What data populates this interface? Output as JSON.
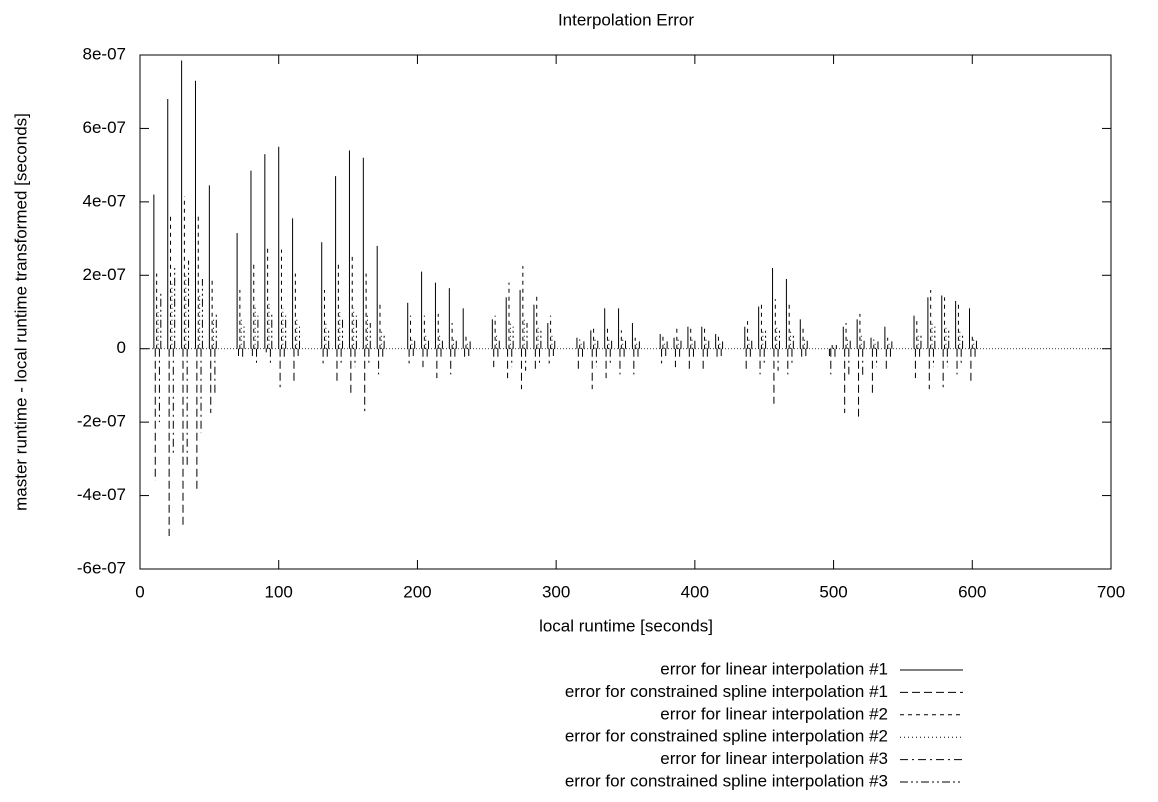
{
  "chart_data": {
    "type": "impulse",
    "title": "Interpolation Error",
    "x_label": "local runtime [seconds]",
    "y_label": "master runtime - local runtime transformed [seconds]",
    "xlim": [
      0,
      700
    ],
    "xticks": [
      0,
      100,
      200,
      300,
      400,
      500,
      600,
      700
    ],
    "ylim": [
      -6e-07,
      8e-07
    ],
    "yticks": [
      {
        "value": -6e-07,
        "label": "-6e-07"
      },
      {
        "value": -4e-07,
        "label": "-4e-07"
      },
      {
        "value": -2e-07,
        "label": "-2e-07"
      },
      0,
      {
        "value": 2e-07,
        "label": "2e-07"
      },
      {
        "value": 4e-07,
        "label": "4e-07"
      },
      {
        "value": 6e-07,
        "label": "6e-07"
      },
      {
        "value": 8e-07,
        "label": "8e-07"
      }
    ],
    "legend": "bottom-right",
    "series": [
      {
        "name": "error for linear interpolation #1",
        "color": "#000000",
        "dash": [],
        "x": [
          10,
          20,
          30,
          40,
          50,
          70,
          80,
          90,
          100,
          110,
          131,
          141,
          151,
          161,
          171,
          193,
          203,
          213,
          223,
          233,
          254,
          264,
          274,
          284,
          294,
          315,
          325,
          335,
          345,
          355,
          375,
          385,
          395,
          405,
          415,
          436,
          446,
          456,
          466,
          476,
          497,
          507,
          517,
          527,
          537,
          558,
          568,
          578,
          588,
          598
        ],
        "values": [
          4.2e-07,
          6.8e-07,
          7.85e-07,
          7.3e-07,
          4.45e-07,
          3.15e-07,
          4.85e-07,
          5.3e-07,
          5.5e-07,
          3.55e-07,
          2.9e-07,
          4.7e-07,
          5.4e-07,
          5.2e-07,
          2.8e-07,
          1.25e-07,
          2.1e-07,
          1.8e-07,
          1.65e-07,
          1.1e-07,
          8e-08,
          1.4e-07,
          1.6e-07,
          1.2e-07,
          7e-08,
          3e-08,
          5e-08,
          1.1e-07,
          1.1e-07,
          7e-08,
          4e-08,
          3e-08,
          6e-08,
          6e-08,
          4e-08,
          6e-08,
          1.15e-07,
          2.2e-07,
          1.9e-07,
          8e-08,
          -2e-08,
          6e-08,
          8e-08,
          3e-08,
          6e-08,
          9e-08,
          1.4e-07,
          1.45e-07,
          1.3e-07,
          1.1e-07
        ]
      },
      {
        "name": "error for constrained spline interpolation #1",
        "color": "#000000",
        "dash": [
          8,
          4
        ],
        "x": [
          11,
          21,
          31,
          41,
          51,
          71,
          81,
          91,
          101,
          111,
          132,
          142,
          152,
          162,
          172,
          194,
          204,
          214,
          224,
          234,
          255,
          265,
          275,
          285,
          295,
          316,
          326,
          336,
          346,
          356,
          376,
          386,
          396,
          406,
          416,
          437,
          447,
          457,
          467,
          477,
          498,
          508,
          518,
          528,
          538,
          559,
          569,
          579,
          589,
          599
        ],
        "values": [
          -3.6e-07,
          -5.1e-07,
          -4.9e-07,
          -3.85e-07,
          -1.75e-07,
          -2e-08,
          -2e-08,
          -1e-08,
          -1.05e-07,
          -9e-08,
          -4e-08,
          -9e-08,
          -1.2e-07,
          -1.7e-07,
          -7e-08,
          -4e-08,
          -5e-08,
          -8e-08,
          -7e-08,
          -3e-08,
          -5e-08,
          -8e-08,
          -1.1e-07,
          -6e-08,
          -4e-08,
          -6e-08,
          -1.1e-07,
          -8e-08,
          -7e-08,
          -7e-08,
          -4e-08,
          -5e-08,
          -6.5e-08,
          -6e-08,
          -3e-08,
          -6.5e-08,
          -7e-08,
          -1.5e-07,
          -7e-08,
          -3e-08,
          -7e-08,
          -1.75e-07,
          -1.85e-07,
          -1.2e-07,
          -6e-08,
          -8e-08,
          -1.1e-07,
          -1.05e-07,
          -7e-08,
          -9.5e-08
        ]
      },
      {
        "name": "error for linear interpolation #2",
        "color": "#000000",
        "dash": [
          4,
          4
        ],
        "x": [
          12,
          22,
          32,
          42,
          52,
          72,
          82,
          92,
          102,
          112,
          133,
          143,
          153,
          163,
          173,
          195,
          205,
          215,
          225,
          235,
          256,
          266,
          276,
          286,
          296,
          317,
          327,
          337,
          347,
          357,
          377,
          387,
          397,
          407,
          417,
          438,
          448,
          458,
          468,
          478,
          499,
          509,
          519,
          529,
          539,
          560,
          570,
          580,
          590,
          600
        ],
        "values": [
          2.05e-07,
          3.6e-07,
          4.15e-07,
          3.7e-07,
          1.95e-07,
          1.6e-07,
          2.35e-07,
          2.75e-07,
          2.7e-07,
          2.05e-07,
          1.6e-07,
          2.35e-07,
          2.5e-07,
          2.05e-07,
          1.2e-07,
          9e-08,
          9e-08,
          9.5e-08,
          7e-08,
          4e-08,
          9e-08,
          1.8e-07,
          2.25e-07,
          1.5e-07,
          9e-08,
          2.5e-08,
          5.5e-08,
          6e-08,
          5e-08,
          3e-08,
          3.5e-08,
          5.5e-08,
          6e-08,
          6.5e-08,
          3.5e-08,
          7.5e-08,
          1.2e-07,
          1.35e-07,
          1.25e-07,
          6e-08,
          1e-08,
          7e-08,
          9.5e-08,
          2.5e-08,
          3e-08,
          7.5e-08,
          1.6e-07,
          1.4e-07,
          1.2e-07,
          4e-08
        ]
      },
      {
        "name": "error for constrained spline interpolation #2",
        "color": "#000000",
        "dash": [
          1,
          3
        ],
        "x": [
          13,
          23,
          33,
          43,
          53,
          73,
          83,
          93,
          103,
          113,
          134,
          144,
          154,
          164,
          174,
          196,
          206,
          216,
          226,
          236,
          257,
          267,
          277,
          287,
          297,
          318,
          328,
          338,
          348,
          358,
          378,
          388,
          398,
          408,
          418,
          439,
          449,
          459,
          469,
          479,
          500,
          510,
          520,
          530,
          540,
          561,
          571,
          581,
          591,
          601
        ],
        "values": [
          1e-07,
          1.8e-07,
          2e-07,
          1.5e-07,
          8e-08,
          8e-08,
          1.2e-07,
          1.3e-07,
          1.1e-07,
          8e-08,
          7e-08,
          1e-07,
          1.1e-07,
          9e-08,
          5e-08,
          3e-08,
          4e-08,
          4e-08,
          3e-08,
          2e-08,
          4e-08,
          7e-08,
          8e-08,
          6e-08,
          4e-08,
          2e-08,
          3e-08,
          3e-08,
          3e-08,
          2e-08,
          2e-08,
          3e-08,
          3e-08,
          3e-08,
          2e-08,
          3e-08,
          5e-08,
          6e-08,
          5e-08,
          3e-08,
          1e-08,
          3e-08,
          4e-08,
          2e-08,
          2e-08,
          4e-08,
          7e-08,
          6e-08,
          5e-08,
          3e-08
        ]
      },
      {
        "name": "error for linear interpolation #3",
        "color": "#000000",
        "dash": [
          8,
          4,
          2,
          4
        ],
        "x": [
          14,
          24,
          34,
          44,
          54,
          74,
          84,
          94,
          104,
          114,
          135,
          145,
          155,
          165,
          175,
          197,
          207,
          217,
          227,
          237,
          258,
          268,
          278,
          288,
          298,
          319,
          329,
          339,
          349,
          359,
          379,
          389,
          399,
          409,
          419,
          440,
          450,
          460,
          470,
          480,
          501,
          511,
          521,
          531,
          541,
          562,
          572,
          582,
          592,
          602
        ],
        "values": [
          -2e-07,
          -2.9e-07,
          -3.2e-07,
          -2.3e-07,
          -1.2e-07,
          -3e-08,
          -4e-08,
          -4e-08,
          -3e-08,
          -2e-08,
          -3e-08,
          -4e-08,
          -5e-08,
          -4e-08,
          -3e-08,
          -2e-08,
          -3e-08,
          -3e-08,
          -3e-08,
          -2e-08,
          -3e-08,
          -5e-08,
          -6e-08,
          -4e-08,
          -2e-08,
          -3e-08,
          -5e-08,
          -4e-08,
          -3e-08,
          -3e-08,
          -2e-08,
          -3e-08,
          -3e-08,
          -3e-08,
          -2e-08,
          -3e-08,
          -4e-08,
          -6e-08,
          -4e-08,
          -2e-08,
          -3e-08,
          -7e-08,
          -8e-08,
          -5e-08,
          -3e-08,
          -3e-08,
          -5e-08,
          -5e-08,
          -4e-08,
          -3e-08
        ]
      },
      {
        "name": "error for constrained spline interpolation #3",
        "color": "#000000",
        "dash": [
          8,
          3,
          2,
          3,
          2,
          3
        ],
        "x": [
          15,
          25,
          35,
          45,
          55,
          75,
          85,
          95,
          105,
          115,
          136,
          146,
          156,
          166,
          176,
          198,
          208,
          218,
          228,
          238,
          259,
          269,
          279,
          289,
          299,
          320,
          330,
          340,
          350,
          360,
          380,
          390,
          400,
          410,
          420,
          441,
          451,
          461,
          471,
          481,
          502,
          512,
          522,
          532,
          542,
          563,
          573,
          583,
          593,
          603
        ],
        "values": [
          1.5e-07,
          2.2e-07,
          2.4e-07,
          1.9e-07,
          1e-07,
          6e-08,
          9e-08,
          1e-07,
          9e-08,
          6e-08,
          5e-08,
          8e-08,
          9e-08,
          7e-08,
          4e-08,
          3e-08,
          3e-08,
          3e-08,
          3e-08,
          2e-08,
          3e-08,
          6e-08,
          7e-08,
          5e-08,
          3e-08,
          2e-08,
          3e-08,
          3e-08,
          3e-08,
          2e-08,
          2e-08,
          3e-08,
          3e-08,
          3e-08,
          2e-08,
          3e-08,
          5e-08,
          5e-08,
          4e-08,
          3e-08,
          1e-08,
          3e-08,
          3e-08,
          2e-08,
          2e-08,
          4e-08,
          6e-08,
          5e-08,
          4e-08,
          3e-08
        ]
      }
    ]
  }
}
